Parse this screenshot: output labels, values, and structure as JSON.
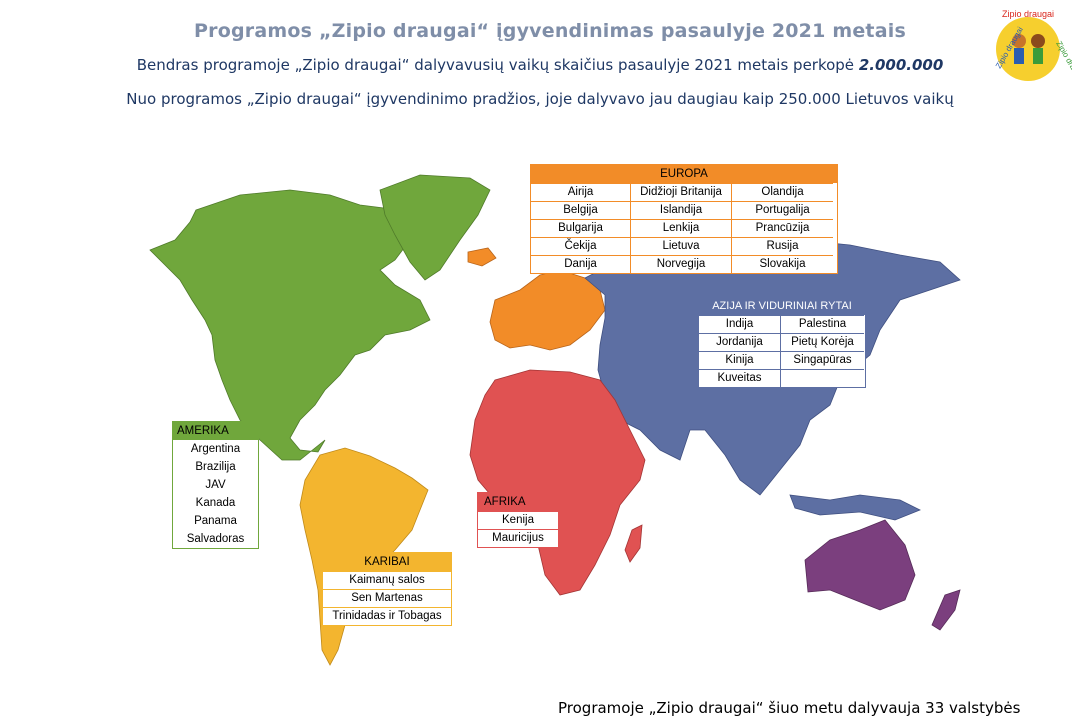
{
  "title": "Programos „Zipio draugai“ įgyvendinimas pasaulyje 2021 metais",
  "subtitle1_prefix": "Bendras programoje „Zipio draugai“ dalyvavusių vaikų skaičius pasaulyje 2021 metais perkopė ",
  "subtitle1_value": "2.000.000",
  "subtitle2": "Nuo programos „Zipio draugai“ įgyvendinimo pradžios, joje dalyvavo jau daugiau kaip 250.000 Lietuvos vaikų",
  "footer": "Programoje „Zipio draugai“ šiuo metu dalyvauja 33 valstybės",
  "logo_text": "Zipio draugai",
  "colors": {
    "europe": "#f28c28",
    "asia": "#5d6fa3",
    "america": "#70a73c",
    "south_america": "#f3b52f",
    "africa": "#e05252",
    "oceania": "#7b3f7e"
  },
  "regions": {
    "europe": {
      "title": "EUROPA",
      "countries": [
        "Airija",
        "Didžioji Britanija",
        "Olandija",
        "Belgija",
        "Islandija",
        "Portugalija",
        "Bulgarija",
        "Lenkija",
        "Prancūzija",
        "Čekija",
        "Lietuva",
        "Rusija",
        "Danija",
        "Norvegija",
        "Slovakija"
      ]
    },
    "asia": {
      "title": "AZIJA IR VIDURINIAI RYTAI",
      "countries": [
        "Indija",
        "Palestina",
        "Jordanija",
        "Pietų Korėja",
        "Kinija",
        "Singapūras",
        "Kuveitas",
        ""
      ]
    },
    "america": {
      "title": "AMERIKA",
      "countries": [
        "Argentina",
        "Brazilija",
        "JAV",
        "Kanada",
        "Panama",
        "Salvadoras"
      ]
    },
    "caribbean": {
      "title": "KARIBAI",
      "countries": [
        "Kaimanų salos",
        "Sen Martenas",
        "Trinidadas ir Tobagas"
      ]
    },
    "africa": {
      "title": "AFRIKA",
      "countries": [
        "Kenija",
        "Mauricijus"
      ]
    }
  }
}
